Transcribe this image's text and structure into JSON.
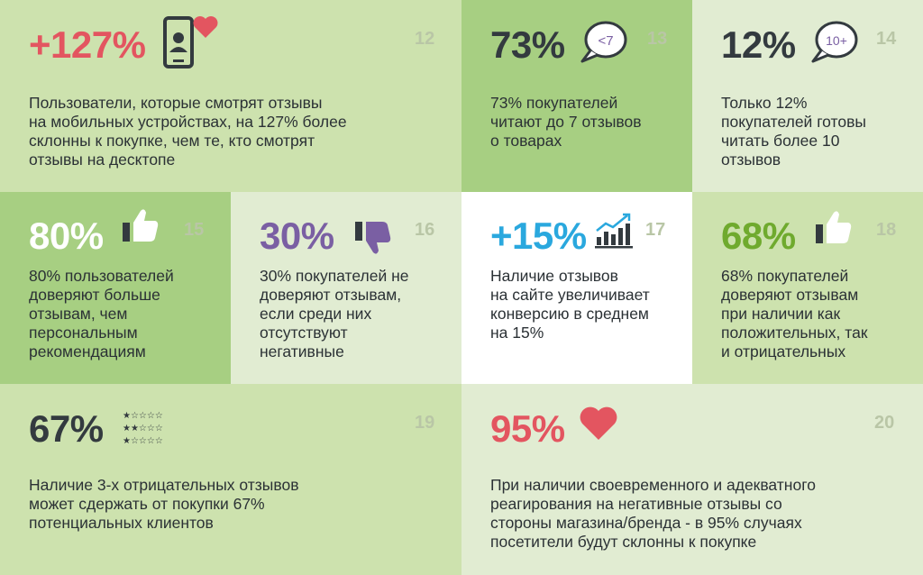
{
  "colors": {
    "light_green": "#cde2ae",
    "mid_green": "#a7cf82",
    "pale_green": "#e1ecd2",
    "white": "#ffffff",
    "red": "#e35560",
    "dark": "#333a3f",
    "purple": "#7a5fa3",
    "blue": "#2aa8de",
    "green": "#6faa2e"
  },
  "cards": [
    {
      "number": "12",
      "stat": "+127%",
      "icon": "phone-heart-icon",
      "text": "Пользователи, которые смотрят отзывы\nна мобильных устройствах, на 127% более\nсклонны к покупке, чем те, кто смотрят\nотзывы на десктопе"
    },
    {
      "number": "13",
      "stat": "73%",
      "icon": "speech-bubble-icon",
      "icon_text": "<7",
      "text": "73% покупателей\nчитают до 7 отзывов\nо товарах"
    },
    {
      "number": "14",
      "stat": "12%",
      "icon": "speech-bubble-icon",
      "icon_text": "10+",
      "text": "Только 12%\nпокупателей готовы\nчитать более 10\nотзывов"
    },
    {
      "number": "15",
      "stat": "80%",
      "icon": "thumbs-up-icon",
      "text": "80% пользователей\nдоверяют больше\nотзывам, чем\nперсональным\nрекомендациям"
    },
    {
      "number": "16",
      "stat": "30%",
      "icon": "thumbs-down-icon",
      "text": "30% покупателей не\nдоверяют отзывам,\nесли среди них\nотсутствуют\nнегативные"
    },
    {
      "number": "17",
      "stat": "+15%",
      "icon": "growth-chart-icon",
      "text": "Наличие отзывов\nна сайте увеличивает\nконверсию в среднем\nна 15%"
    },
    {
      "number": "18",
      "stat": "68%",
      "icon": "thumbs-up-icon",
      "text": "68% покупателей\nдоверяют отзывам\nпри наличии как\nположительных, так\nи отрицательных"
    },
    {
      "number": "19",
      "stat": "67%",
      "icon": "star-ratings-icon",
      "stars": [
        "★☆☆☆☆",
        "★★☆☆☆",
        "★☆☆☆☆"
      ],
      "text": "Наличие 3-х отрицательных отзывов\nможет сдержать от покупки 67%\nпотенциальных клиентов"
    },
    {
      "number": "20",
      "stat": "95%",
      "icon": "heart-icon",
      "text": "При наличии своевременного и адекватного\nреагирования на негативные отзывы со\nстороны магазина/бренда - в 95% случаях\nпосетители будут склонны к покупке"
    }
  ]
}
